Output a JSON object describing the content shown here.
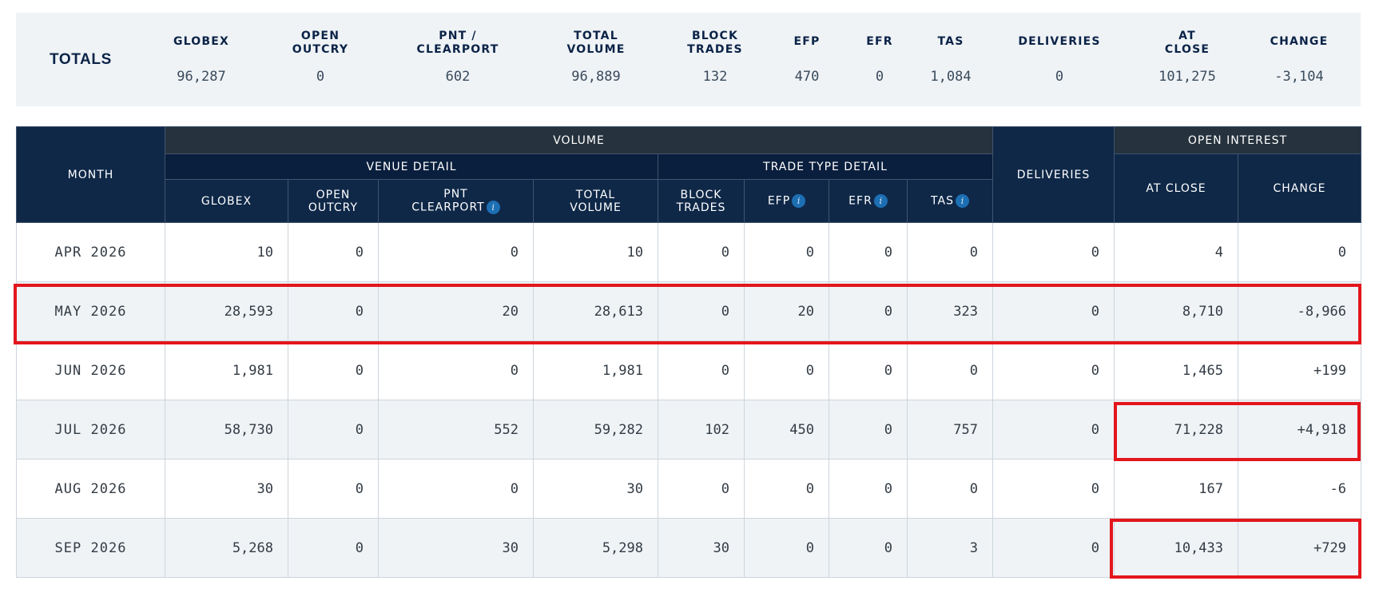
{
  "totals": {
    "label": "TOTALS",
    "columns": [
      {
        "h1": "GLOBEX",
        "h2": "",
        "value": "96,287"
      },
      {
        "h1": "OPEN",
        "h2": "OUTCRY",
        "value": "0"
      },
      {
        "h1": "PNT /",
        "h2": "CLEARPORT",
        "value": "602"
      },
      {
        "h1": "TOTAL",
        "h2": "VOLUME",
        "value": "96,889"
      },
      {
        "h1": "BLOCK",
        "h2": "TRADES",
        "value": "132"
      },
      {
        "h1": "EFP",
        "h2": "",
        "value": "470"
      },
      {
        "h1": "EFR",
        "h2": "",
        "value": "0"
      },
      {
        "h1": "TAS",
        "h2": "",
        "value": "1,084"
      },
      {
        "h1": "DELIVERIES",
        "h2": "",
        "value": "0"
      },
      {
        "h1": "AT",
        "h2": "CLOSE",
        "value": "101,275"
      },
      {
        "h1": "CHANGE",
        "h2": "",
        "value": "-3,104"
      }
    ]
  },
  "table": {
    "headers": {
      "month": "MONTH",
      "volume": "VOLUME",
      "venue_detail": "VENUE DETAIL",
      "trade_type_detail": "TRADE TYPE DETAIL",
      "deliveries": "DELIVERIES",
      "open_interest": "OPEN INTEREST",
      "globex": "GLOBEX",
      "open_outcry_1": "OPEN",
      "open_outcry_2": "OUTCRY",
      "pnt_clearport_1": "PNT",
      "pnt_clearport_2": "CLEARPORT",
      "total_volume_1": "TOTAL",
      "total_volume_2": "VOLUME",
      "block_trades_1": "BLOCK",
      "block_trades_2": "TRADES",
      "efp": "EFP",
      "efr": "EFR",
      "tas": "TAS",
      "at_close": "AT CLOSE",
      "change": "CHANGE"
    },
    "rows": [
      {
        "month": "APR 2026",
        "globex": "10",
        "open_outcry": "0",
        "pnt_clearport": "0",
        "total_volume": "10",
        "block_trades": "0",
        "efp": "0",
        "efr": "0",
        "tas": "0",
        "deliveries": "0",
        "at_close": "4",
        "change": "0",
        "change_sign": "zero"
      },
      {
        "month": "MAY 2026",
        "globex": "28,593",
        "open_outcry": "0",
        "pnt_clearport": "20",
        "total_volume": "28,613",
        "block_trades": "0",
        "efp": "20",
        "efr": "0",
        "tas": "323",
        "deliveries": "0",
        "at_close": "8,710",
        "change": "-8,966",
        "change_sign": "neg"
      },
      {
        "month": "JUN 2026",
        "globex": "1,981",
        "open_outcry": "0",
        "pnt_clearport": "0",
        "total_volume": "1,981",
        "block_trades": "0",
        "efp": "0",
        "efr": "0",
        "tas": "0",
        "deliveries": "0",
        "at_close": "1,465",
        "change": "+199",
        "change_sign": "pos"
      },
      {
        "month": "JUL 2026",
        "globex": "58,730",
        "open_outcry": "0",
        "pnt_clearport": "552",
        "total_volume": "59,282",
        "block_trades": "102",
        "efp": "450",
        "efr": "0",
        "tas": "757",
        "deliveries": "0",
        "at_close": "71,228",
        "change": "+4,918",
        "change_sign": "pos"
      },
      {
        "month": "AUG 2026",
        "globex": "30",
        "open_outcry": "0",
        "pnt_clearport": "0",
        "total_volume": "30",
        "block_trades": "0",
        "efp": "0",
        "efr": "0",
        "tas": "0",
        "deliveries": "0",
        "at_close": "167",
        "change": "-6",
        "change_sign": "neg"
      },
      {
        "month": "SEP 2026",
        "globex": "5,268",
        "open_outcry": "0",
        "pnt_clearport": "30",
        "total_volume": "5,298",
        "block_trades": "30",
        "efp": "0",
        "efr": "0",
        "tas": "3",
        "deliveries": "0",
        "at_close": "10,433",
        "change": "+729",
        "change_sign": "pos"
      }
    ]
  },
  "colors": {
    "header_navy": "#0f2848",
    "header_slate": "#26323d",
    "positive": "#1f8a1f",
    "negative": "#e0201e",
    "highlight_box": "#e3161c"
  }
}
